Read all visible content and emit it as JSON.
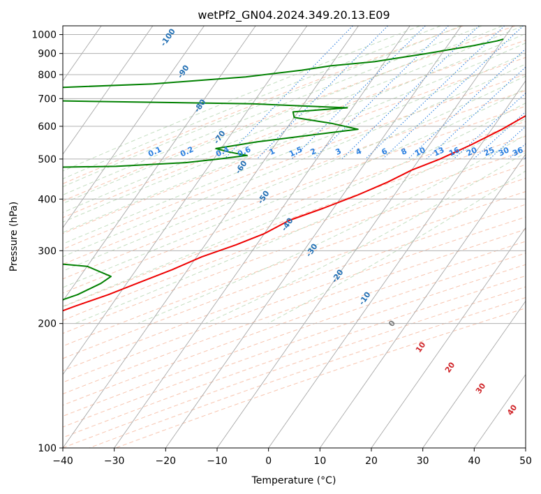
{
  "chart_data": {
    "type": "line",
    "title": "wetPf2_GN04.2024.349.20.13.E09",
    "xlabel": "Temperature (°C)",
    "ylabel": "Pressure (hPa)",
    "xlim": [
      -40,
      50
    ],
    "ylim": [
      1050,
      100
    ],
    "y_scale": "log",
    "x_ticks": [
      "−40",
      "−30",
      "−20",
      "−10",
      "0",
      "10",
      "20",
      "30",
      "40",
      "50"
    ],
    "y_ticks": [
      "100",
      "200",
      "300",
      "400",
      "500",
      "600",
      "700",
      "800",
      "900",
      "1000"
    ],
    "grid": true,
    "colors": {
      "temperature": "#ee0000",
      "dewpoint": "#008000",
      "isotherm_grid": "#a8a8a8",
      "dry_adiabat": "#f4a582",
      "moist_adiabat": "#b5d6b0",
      "mixing_ratio": "#2a7fe0",
      "skewed_isotherm_label": "#2370b4",
      "warm_isotherm_label": "#d0262a",
      "zero_isotherm_label": "#7a7a7a"
    },
    "skewed_isotherm_labels": [
      "-100",
      "-90",
      "-80",
      "-70",
      "-60",
      "-50",
      "-40",
      "-30",
      "-20",
      "-10",
      "0",
      "10",
      "20",
      "30",
      "40"
    ],
    "mixing_ratio_labels": [
      "0.1",
      "0.2",
      "0.4",
      "0.6",
      "1",
      "1.5",
      "2",
      "3",
      "4",
      "6",
      "8",
      "10",
      "13",
      "16",
      "20",
      "25",
      "30",
      "36"
    ],
    "series": [
      {
        "key": "temperature",
        "points": [
          [
            -72,
            100
          ],
          [
            -71,
            110
          ],
          [
            -71,
            118
          ],
          [
            -73,
            125
          ],
          [
            -74,
            132
          ],
          [
            -76,
            140
          ],
          [
            -78,
            150
          ],
          [
            -78,
            160
          ],
          [
            -72,
            175
          ],
          [
            -68,
            190
          ],
          [
            -62,
            205
          ],
          [
            -57,
            220
          ],
          [
            -52,
            235
          ],
          [
            -48,
            250
          ],
          [
            -43,
            270
          ],
          [
            -39,
            290
          ],
          [
            -34,
            310
          ],
          [
            -30,
            330
          ],
          [
            -27,
            355
          ],
          [
            -22,
            380
          ],
          [
            -17,
            410
          ],
          [
            -13,
            440
          ],
          [
            -10,
            470
          ],
          [
            -6,
            500
          ],
          [
            -2,
            540
          ],
          [
            2,
            590
          ],
          [
            5,
            640
          ],
          [
            7,
            690
          ],
          [
            8,
            720
          ],
          [
            8,
            760
          ],
          [
            8,
            800
          ],
          [
            10,
            850
          ],
          [
            12,
            900
          ],
          [
            15,
            950
          ],
          [
            17,
            970
          ]
        ]
      },
      {
        "key": "dewpoint",
        "points": [
          [
            -72,
            100
          ],
          [
            -76,
            115
          ],
          [
            -82,
            130
          ],
          [
            -89,
            140
          ],
          [
            -92,
            150
          ],
          [
            -90,
            160
          ],
          [
            -82,
            175
          ],
          [
            -76,
            190
          ],
          [
            -70,
            205
          ],
          [
            -63,
            220
          ],
          [
            -58,
            235
          ],
          [
            -55,
            250
          ],
          [
            -54,
            260
          ],
          [
            -60,
            275
          ],
          [
            -82,
            290
          ],
          [
            -103,
            300
          ],
          [
            -101,
            330
          ],
          [
            -97,
            370
          ],
          [
            -96,
            400
          ],
          [
            -100,
            430
          ],
          [
            -105,
            460
          ],
          [
            -120,
            470
          ],
          [
            -68,
            480
          ],
          [
            -55,
            490
          ],
          [
            -49,
            500
          ],
          [
            -44,
            510
          ],
          [
            -48,
            520
          ],
          [
            -51,
            530
          ],
          [
            -44,
            550
          ],
          [
            -35,
            570
          ],
          [
            -26,
            590
          ],
          [
            -32,
            610
          ],
          [
            -40,
            630
          ],
          [
            -41,
            650
          ],
          [
            -31,
            665
          ],
          [
            -50,
            680
          ],
          [
            -100,
            695
          ],
          [
            -120,
            700
          ],
          [
            -120,
            720
          ],
          [
            -95,
            740
          ],
          [
            -72,
            760
          ],
          [
            -55,
            790
          ],
          [
            -45,
            820
          ],
          [
            -40,
            840
          ],
          [
            -32,
            860
          ],
          [
            -23,
            900
          ],
          [
            -15,
            940
          ],
          [
            -11,
            965
          ],
          [
            -10,
            975
          ]
        ]
      }
    ]
  }
}
